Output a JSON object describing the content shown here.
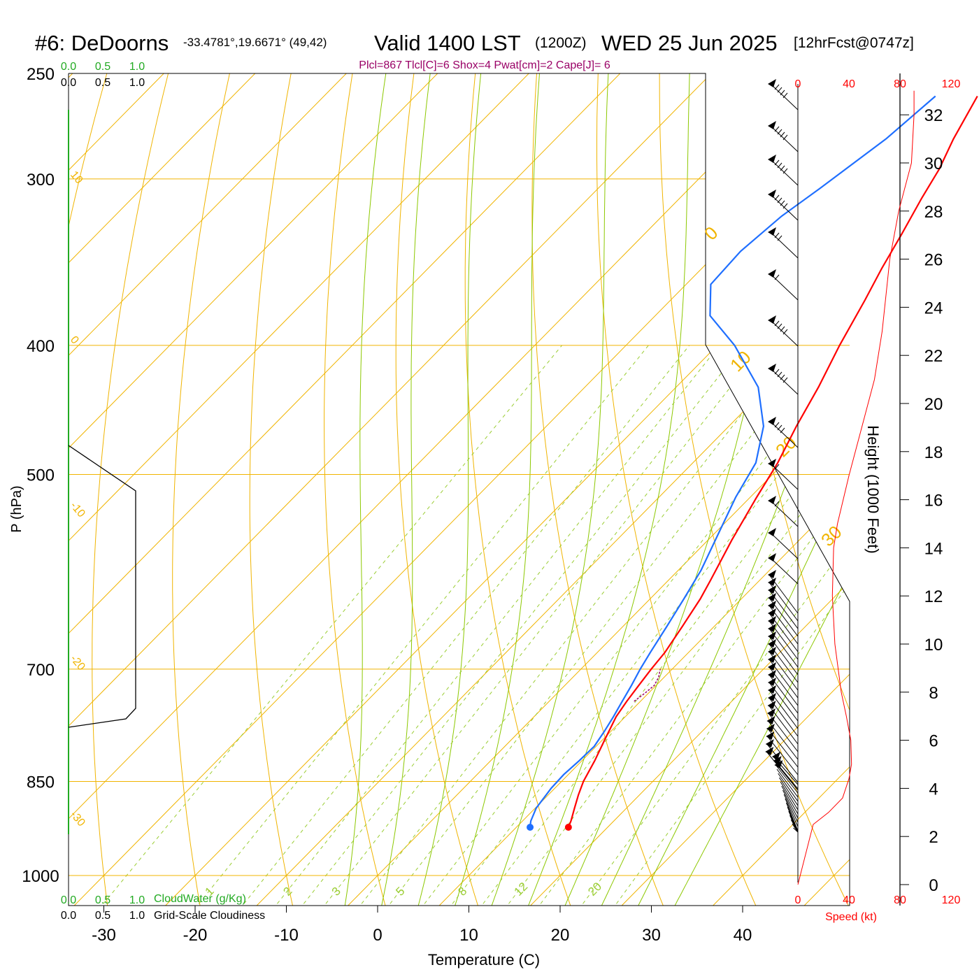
{
  "header": {
    "station": "#6: DeDoorns",
    "coords": "-33.4781°,19.6671° (49,42)",
    "valid": "Valid 1400 LST",
    "zulu": "(1200Z)",
    "date": "WED 25 Jun 2025",
    "fcst": "[12hrFcst@0747z]",
    "indices": "Plcl=867 Tlcl[C]=6 Shox=4 Pwat[cm]=2 Cape[J]= 6"
  },
  "labels": {
    "pressure_axis": "P (hPa)",
    "temperature_axis": "Temperature (C)",
    "height_axis": "Height (1000 Feet)",
    "speed_axis": "Speed (kt)",
    "cloudwater": "CloudWater (g/Kg)",
    "cloudiness": "Grid-Scale Cloudiness"
  },
  "colors": {
    "temperature": "#ff0000",
    "dewpoint": "#1f6fff",
    "isotherm": "#f0b400",
    "dry_adiabat": "#f0b400",
    "moist_adiabat": "#8cc800",
    "mixing_ratio": "#9acd32",
    "cloud": "#22aa22",
    "indices": "#990066"
  },
  "chart_data": {
    "type": "line",
    "pressure_ticks": [
      250,
      300,
      400,
      500,
      700,
      850,
      1000
    ],
    "temperature_ticks": [
      -30,
      -20,
      -10,
      0,
      10,
      20,
      30,
      40
    ],
    "cloud_scale_top": [
      "0.0",
      "0.5",
      "1.0"
    ],
    "cloud_scale_bottom": [
      "0.0",
      "0.5",
      "1.0"
    ],
    "speed_ticks": [
      0,
      40,
      80,
      120
    ],
    "height_ticks": [
      0,
      2,
      4,
      6,
      8,
      10,
      12,
      14,
      16,
      18,
      20,
      22,
      24,
      26,
      28,
      30,
      32
    ],
    "isotherm_labels": [
      "-30",
      "-20",
      "-10",
      "0",
      "10",
      "20",
      "30"
    ],
    "mixing_ratio_labels": [
      "1",
      "2",
      "3",
      "5",
      "8",
      "12",
      "20"
    ],
    "series": [
      {
        "name": "Temperature",
        "points": [
          [
            920,
            15.7
          ],
          [
            910,
            15.3
          ],
          [
            890,
            14.3
          ],
          [
            870,
            13.3
          ],
          [
            850,
            12.4
          ],
          [
            820,
            11.4
          ],
          [
            790,
            10.2
          ],
          [
            760,
            9.0
          ],
          [
            740,
            8.5
          ],
          [
            720,
            8.1
          ],
          [
            700,
            7.7
          ],
          [
            680,
            7.4
          ],
          [
            650,
            6.5
          ],
          [
            620,
            5.5
          ],
          [
            600,
            4.6
          ],
          [
            560,
            2.6
          ],
          [
            520,
            0.7
          ],
          [
            490,
            -0.7
          ],
          [
            460,
            -2.6
          ],
          [
            430,
            -4.4
          ],
          [
            400,
            -6.6
          ],
          [
            370,
            -8.7
          ],
          [
            350,
            -10.3
          ],
          [
            330,
            -11.8
          ],
          [
            310,
            -13.5
          ],
          [
            295,
            -14.7
          ],
          [
            280,
            -16.4
          ],
          [
            260,
            -18.4
          ]
        ]
      },
      {
        "name": "Dewpoint",
        "points": [
          [
            920,
            11.5
          ],
          [
            910,
            10.9
          ],
          [
            890,
            10.1
          ],
          [
            860,
            9.6
          ],
          [
            840,
            9.5
          ],
          [
            820,
            9.7
          ],
          [
            800,
            9.8
          ],
          [
            780,
            9.3
          ],
          [
            760,
            8.7
          ],
          [
            740,
            8.0
          ],
          [
            720,
            7.3
          ],
          [
            700,
            6.5
          ],
          [
            680,
            5.8
          ],
          [
            650,
            4.8
          ],
          [
            620,
            3.7
          ],
          [
            590,
            2.5
          ],
          [
            560,
            0.8
          ],
          [
            520,
            -1.6
          ],
          [
            490,
            -3.1
          ],
          [
            460,
            -6.2
          ],
          [
            430,
            -11.0
          ],
          [
            400,
            -18.1
          ],
          [
            380,
            -24.0
          ],
          [
            360,
            -27.3
          ],
          [
            340,
            -27.6
          ],
          [
            320,
            -26.9
          ],
          [
            305,
            -25.7
          ],
          [
            280,
            -23.8
          ],
          [
            260,
            -23.0
          ]
        ]
      }
    ],
    "parcel_trace": [
      [
        740,
        9.3
      ],
      [
        730,
        9.6
      ],
      [
        720,
        9.8
      ],
      [
        710,
        9.4
      ],
      [
        700,
        8.7
      ]
    ],
    "surface_temperature": 15.7,
    "surface_dewpoint": 11.5,
    "surface_pressure": 920,
    "wind_speed_profile": [
      [
        0,
        0
      ],
      [
        2.5,
        12
      ],
      [
        3,
        24
      ],
      [
        3.6,
        35
      ],
      [
        4.4,
        40
      ],
      [
        5,
        42
      ],
      [
        6,
        41.5
      ],
      [
        7,
        38
      ],
      [
        8,
        34
      ],
      [
        10,
        29
      ],
      [
        12,
        27
      ],
      [
        14,
        28
      ],
      [
        15,
        31
      ],
      [
        17,
        40
      ],
      [
        19,
        50
      ],
      [
        21,
        60
      ],
      [
        23,
        66
      ],
      [
        25,
        70
      ],
      [
        26,
        72
      ],
      [
        28,
        79
      ],
      [
        30,
        89
      ],
      [
        32,
        91
      ],
      [
        33,
        91
      ]
    ],
    "grid": true
  }
}
